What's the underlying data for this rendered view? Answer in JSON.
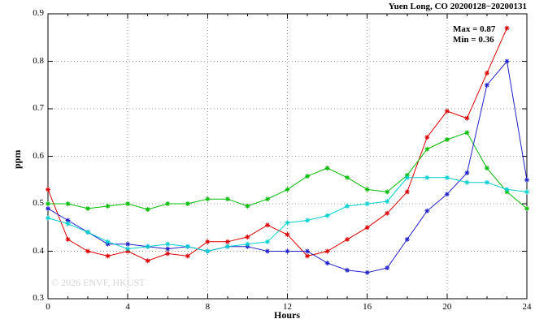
{
  "watermark": "© 2026 ENVF, HKUST",
  "chart_data": {
    "type": "line",
    "title": "Yuen Long, CO 20200128−20200131",
    "xlabel": "Hours",
    "ylabel": "ppm",
    "annotations": {
      "max": "Max = 0.87",
      "min": "Min = 0.36"
    },
    "xlim": [
      0,
      24
    ],
    "ylim": [
      0.3,
      0.9
    ],
    "x_tick_values": [
      0,
      4,
      8,
      12,
      16,
      20,
      24
    ],
    "x_tick_labels": [
      "0",
      "4",
      "8",
      "12",
      "16",
      "20",
      "24"
    ],
    "y_tick_values": [
      0.3,
      0.4,
      0.5,
      0.6,
      0.7,
      0.8,
      0.9
    ],
    "y_tick_labels": [
      "0.3",
      "0.4",
      "0.5",
      "0.6",
      "0.7",
      "0.8",
      "0.9"
    ],
    "grid": true,
    "grid_color": "#9a9a9a",
    "legend": "none",
    "marker": "asterisk",
    "x": [
      0,
      1,
      2,
      3,
      4,
      5,
      6,
      7,
      8,
      9,
      10,
      11,
      12,
      13,
      14,
      15,
      16,
      17,
      18,
      19,
      20,
      21,
      22,
      23,
      24
    ],
    "series": [
      {
        "name": "series-red",
        "color": "#dd0000",
        "values": [
          0.53,
          0.425,
          0.4,
          0.39,
          0.4,
          0.38,
          0.395,
          0.39,
          0.42,
          0.42,
          0.43,
          0.455,
          0.435,
          0.39,
          0.4,
          0.425,
          0.45,
          0.48,
          0.525,
          0.64,
          0.695,
          0.68,
          0.775,
          0.87,
          null
        ]
      },
      {
        "name": "series-green",
        "color": "#00bb00",
        "values": [
          0.5,
          0.5,
          0.49,
          0.495,
          0.5,
          0.488,
          0.5,
          0.5,
          0.51,
          0.51,
          0.495,
          0.51,
          0.53,
          0.558,
          0.575,
          0.555,
          0.53,
          0.525,
          0.56,
          0.615,
          0.635,
          0.65,
          0.575,
          0.525,
          0.49
        ]
      },
      {
        "name": "series-blue",
        "color": "#2020cc",
        "values": [
          0.49,
          0.465,
          0.44,
          0.415,
          0.415,
          0.41,
          0.405,
          0.41,
          0.4,
          0.41,
          0.41,
          0.4,
          0.4,
          0.4,
          0.375,
          0.36,
          0.355,
          0.365,
          0.425,
          0.485,
          0.52,
          0.565,
          0.75,
          0.8,
          0.55
        ]
      },
      {
        "name": "series-cyan",
        "color": "#00d0d0",
        "values": [
          0.47,
          0.458,
          0.44,
          0.42,
          0.405,
          0.41,
          0.415,
          0.41,
          0.4,
          0.41,
          0.415,
          0.42,
          0.46,
          0.465,
          0.475,
          0.495,
          0.5,
          0.505,
          0.555,
          0.555,
          0.555,
          0.545,
          0.545,
          0.53,
          0.525
        ]
      }
    ]
  }
}
